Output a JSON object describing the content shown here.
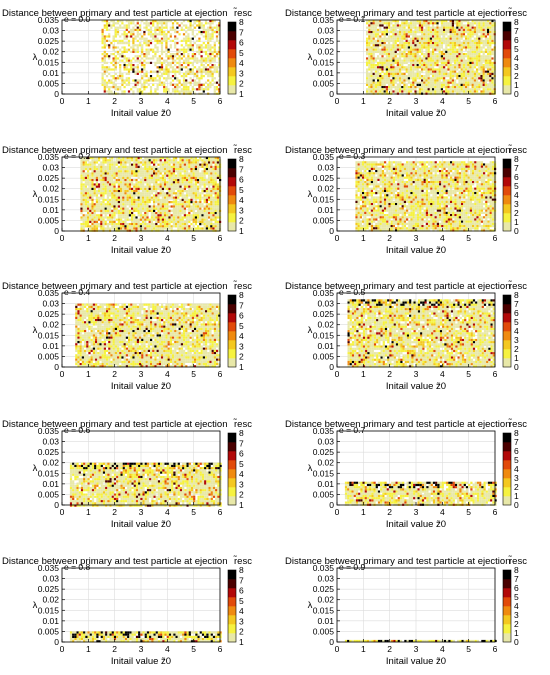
{
  "chart_data": {
    "type": "heatmap",
    "layout": "5 rows x 2 columns grid of panels",
    "title": "Distance between primary and test particle at ejection",
    "colorbar_label": "r̃esc",
    "xlabel": "Initail value z̃0",
    "ylabel": "λ",
    "xlim": [
      0,
      6
    ],
    "ylim": [
      0,
      0.035
    ],
    "xticks": [
      "0",
      "1",
      "2",
      "3",
      "4",
      "5",
      "6"
    ],
    "yticks": [
      "0",
      "0.005",
      "0.01",
      "0.015",
      "0.02",
      "0.025",
      "0.03",
      "0.035"
    ],
    "colorbar_range": [
      1,
      8
    ],
    "colorbar_ticks_left": [
      "1",
      "2",
      "3",
      "4",
      "5",
      "6",
      "7",
      "8"
    ],
    "colorbar_ticks_right": [
      "0",
      "1",
      "2",
      "3",
      "4",
      "5",
      "6",
      "7",
      "8"
    ],
    "colormap": [
      "#e8e8a8",
      "#f6f240",
      "#f4c820",
      "#ef8a10",
      "#e14a0a",
      "#b20808",
      "#4a0000",
      "#000000"
    ],
    "panels": [
      {
        "e": "e = 0.0",
        "ymax": 0.035,
        "xmin": 1.5,
        "xmax": 6
      },
      {
        "e": "e = 0.1",
        "ymax": 0.035,
        "xmin": 1.1,
        "xmax": 6
      },
      {
        "e": "e = 0.2",
        "ymax": 0.035,
        "xmin": 0.7,
        "xmax": 6
      },
      {
        "e": "e = 0.3",
        "ymax": 0.033,
        "xmin": 0.7,
        "xmax": 6
      },
      {
        "e": "e = 0.4",
        "ymax": 0.03,
        "xmin": 0.5,
        "xmax": 6
      },
      {
        "e": "e = 0.5",
        "ymax": 0.032,
        "xmin": 0.4,
        "xmax": 6
      },
      {
        "e": "e = 0.6",
        "ymax": 0.02,
        "xmin": 0.3,
        "xmax": 6
      },
      {
        "e": "e = 0.7",
        "ymax": 0.011,
        "xmin": 0.3,
        "xmax": 6
      },
      {
        "e": "e = 0.8",
        "ymax": 0.005,
        "xmin": 0.3,
        "xmax": 6
      },
      {
        "e": "e = 0.9",
        "ymax": 0.001,
        "xmin": 0.3,
        "xmax": 6
      }
    ]
  }
}
